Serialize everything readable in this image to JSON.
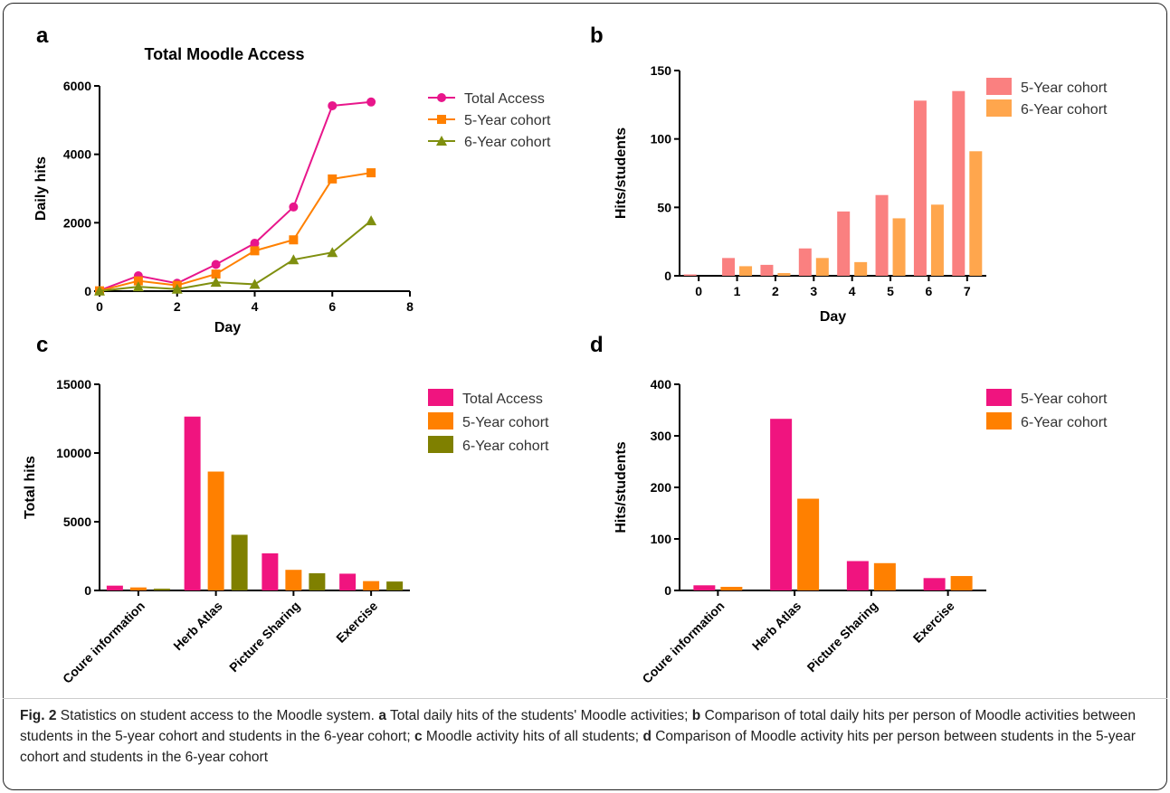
{
  "panels": [
    {
      "label": "a",
      "chart_data": {
        "type": "line",
        "title": "Total Moodle Access",
        "xlabel": "Day",
        "ylabel": "Daily hits",
        "xlim": [
          0,
          8
        ],
        "ylim": [
          0,
          6000
        ],
        "xticks": [
          0,
          2,
          4,
          6,
          8
        ],
        "yticks": [
          0,
          2000,
          4000,
          6000
        ],
        "x": [
          0,
          1,
          2,
          3,
          4,
          5,
          6,
          7
        ],
        "series": [
          {
            "name": "Total Access",
            "color": "#e8168b",
            "marker": "circle",
            "values": [
              20,
              450,
              230,
              780,
              1400,
              2460,
              5420,
              5530
            ]
          },
          {
            "name": "5-Year cohort",
            "color": "#ff8000",
            "marker": "square",
            "values": [
              10,
              300,
              170,
              500,
              1180,
              1500,
              3280,
              3460
            ]
          },
          {
            "name": "6-Year cohort",
            "color": "#7f8f0f",
            "marker": "triangle",
            "values": [
              5,
              130,
              60,
              260,
              200,
              920,
              1130,
              2060
            ]
          }
        ],
        "legend": "right"
      }
    },
    {
      "label": "b",
      "chart_data": {
        "type": "bar",
        "title": "",
        "xlabel": "Day",
        "ylabel": "Hits/students",
        "ylim": [
          0,
          150
        ],
        "yticks": [
          0,
          50,
          100,
          150
        ],
        "categories": [
          "0",
          "1",
          "2",
          "3",
          "4",
          "5",
          "6",
          "7"
        ],
        "series": [
          {
            "name": "5-Year cohort",
            "color": "#fa8080",
            "values": [
              1,
              13,
              8,
              20,
              47,
              59,
              128,
              135
            ]
          },
          {
            "name": "6-Year cohort",
            "color": "#ffa64d",
            "values": [
              0,
              7,
              2,
              13,
              10,
              42,
              52,
              91
            ]
          }
        ],
        "legend": "right"
      }
    },
    {
      "label": "c",
      "chart_data": {
        "type": "bar",
        "title": "",
        "xlabel": "",
        "ylabel": "Total hits",
        "ylim": [
          0,
          15000
        ],
        "yticks": [
          0,
          5000,
          10000,
          15000
        ],
        "categories": [
          "Coure information",
          "Herb Atlas",
          "Picture Sharing",
          "Exercise"
        ],
        "series": [
          {
            "name": "Total Access",
            "color": "#f0147f",
            "values": [
              350,
              12650,
              2700,
              1220
            ]
          },
          {
            "name": "5-Year cohort",
            "color": "#ff8000",
            "values": [
              220,
              8650,
              1500,
              680
            ]
          },
          {
            "name": "6-Year cohort",
            "color": "#7f8000",
            "values": [
              130,
              4050,
              1250,
              650
            ]
          }
        ],
        "legend": "right"
      }
    },
    {
      "label": "d",
      "chart_data": {
        "type": "bar",
        "title": "",
        "xlabel": "",
        "ylabel": "Hits/students",
        "ylim": [
          0,
          400
        ],
        "yticks": [
          0,
          100,
          200,
          300,
          400
        ],
        "categories": [
          "Coure information",
          "Herb Atlas",
          "Picture Sharing",
          "Exercise"
        ],
        "series": [
          {
            "name": "5-Year cohort",
            "color": "#f0147f",
            "values": [
              10,
              333,
              57,
              24
            ]
          },
          {
            "name": "6-Year cohort",
            "color": "#ff8000",
            "values": [
              7,
              178,
              53,
              28
            ]
          }
        ],
        "legend": "right"
      }
    }
  ],
  "caption": {
    "fig_label": "Fig. 2",
    "title": "Statistics on student access to the Moodle system.",
    "a_label": "a",
    "a_text": "Total daily hits of the students' Moodle activities;",
    "b_label": "b",
    "b_text": "Comparison of total daily hits per person of Moodle activities between students in the 5-year cohort and students in the 6-year cohort;",
    "c_label": "c",
    "c_text": "Moodle activity hits of all students;",
    "d_label": "d",
    "d_text": "Comparison of Moodle activity hits per person between students in the 5-year cohort and students in the 6-year cohort"
  }
}
